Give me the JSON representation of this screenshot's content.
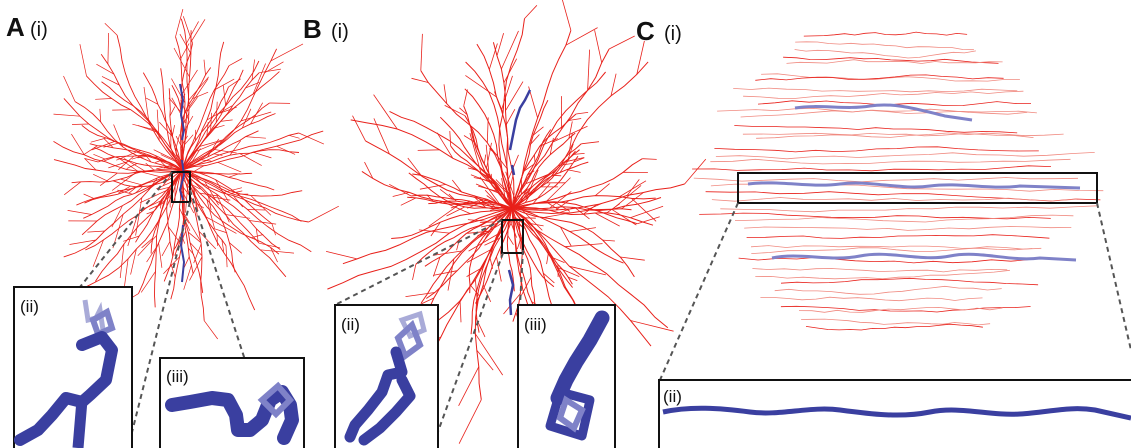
{
  "panels": [
    {
      "letter": "A",
      "sub": "(i)",
      "insets": [
        "(ii)",
        "(iii)"
      ]
    },
    {
      "letter": "B",
      "sub": "(i)",
      "insets": [
        "(ii)",
        "(iii)"
      ]
    },
    {
      "letter": "C",
      "sub": "(i)",
      "insets": [
        "(ii)"
      ]
    }
  ],
  "colors": {
    "dendrite": "#e8201a",
    "dendrite_light": "#f08a80",
    "highlight": "#3a3fa0",
    "highlight_light": "#7f82c8",
    "frame": "#111111",
    "guide": "#555555"
  }
}
